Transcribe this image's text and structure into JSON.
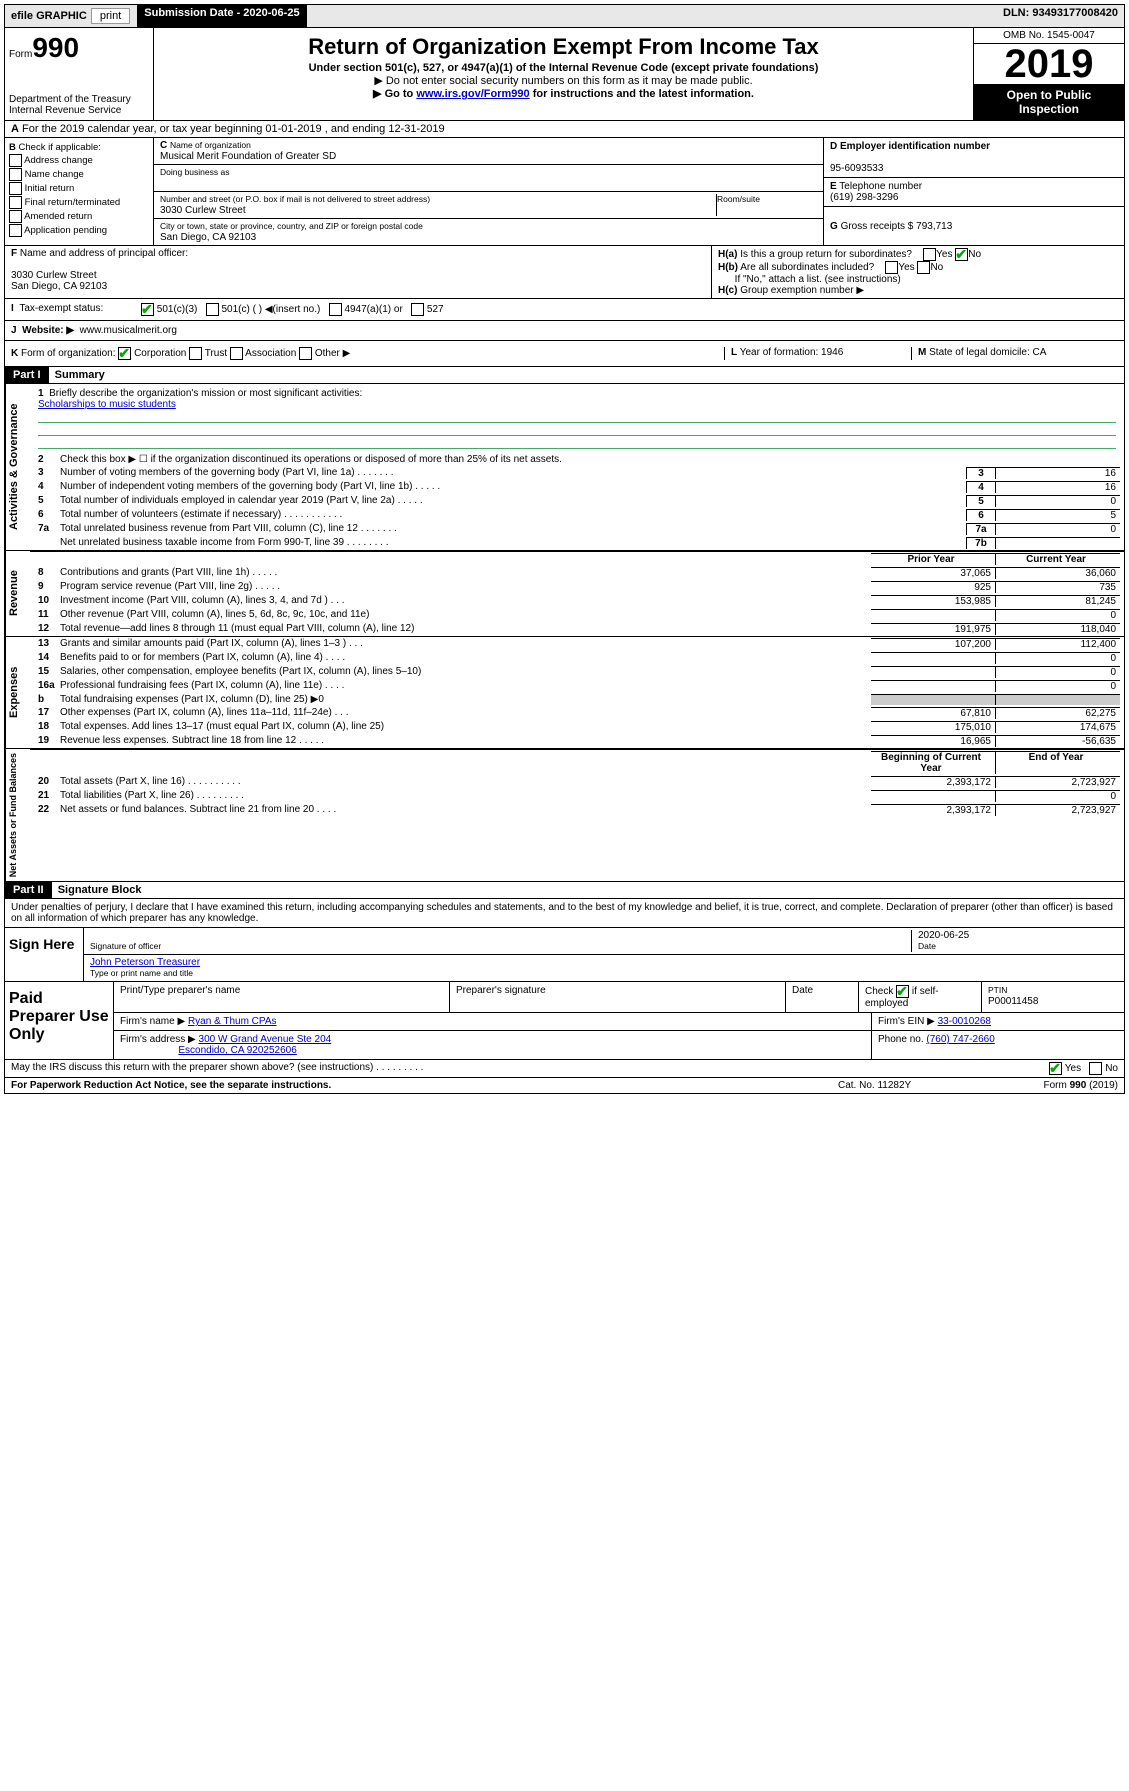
{
  "topbar": {
    "efile": "efile GRAPHIC",
    "print": "print",
    "sub_label": "Submission Date - ",
    "sub_date": "2020-06-25",
    "dln": "DLN: 93493177008420"
  },
  "header": {
    "form_label": "Form",
    "form_num": "990",
    "dept": "Department of the Treasury\nInternal Revenue Service",
    "title": "Return of Organization Exempt From Income Tax",
    "sub1": "Under section 501(c), 527, or 4947(a)(1) of the Internal Revenue Code (except private foundations)",
    "sub2": "▶ Do not enter social security numbers on this form as it may be made public.",
    "sub3_pre": "▶ Go to ",
    "sub3_link": "www.irs.gov/Form990",
    "sub3_post": " for instructions and the latest information.",
    "omb": "OMB No. 1545-0047",
    "year": "2019",
    "open": "Open to Public Inspection"
  },
  "rowA": "For the 2019 calendar year, or tax year beginning 01-01-2019    , and ending 12-31-2019",
  "B": {
    "label": "Check if applicable:",
    "opts": [
      "Address change",
      "Name change",
      "Initial return",
      "Final return/terminated",
      "Amended return",
      "Application pending"
    ]
  },
  "C": {
    "name_label": "Name of organization",
    "name": "Musical Merit Foundation of Greater SD",
    "dba_label": "Doing business as",
    "dba": "",
    "street_label": "Number and street (or P.O. box if mail is not delivered to street address)",
    "street": "3030 Curlew Street",
    "room_label": "Room/suite",
    "city_label": "City or town, state or province, country, and ZIP or foreign postal code",
    "city": "San Diego, CA  92103"
  },
  "D": {
    "ein_label": "Employer identification number",
    "ein": "95-6093533",
    "tel_label": "Telephone number",
    "tel": "(619) 298-3296",
    "gross_label": "Gross receipts $",
    "gross": "793,713"
  },
  "F": {
    "label": "Name and address of principal officer:",
    "addr1": "3030 Curlew Street",
    "addr2": "San Diego, CA  92103"
  },
  "H": {
    "a": "Is this a group return for subordinates?",
    "b": "Are all subordinates included?",
    "b2": "If \"No,\" attach a list. (see instructions)",
    "c": "Group exemption number ▶"
  },
  "I": {
    "label": "Tax-exempt status:",
    "o1": "501(c)(3)",
    "o2": "501(c) (  ) ◀(insert no.)",
    "o3": "4947(a)(1) or",
    "o4": "527"
  },
  "J": {
    "label": "Website: ▶",
    "val": "www.musicalmerit.org"
  },
  "K": {
    "label": "Form of organization:",
    "o1": "Corporation",
    "o2": "Trust",
    "o3": "Association",
    "o4": "Other ▶",
    "L": "Year of formation: 1946",
    "M": "State of legal domicile: CA"
  },
  "partI": {
    "hdr": "Part I",
    "title": "Summary",
    "l1": "Briefly describe the organization's mission or most significant activities:",
    "mission": "Scholarships to music students",
    "l2": "Check this box ▶ ☐  if the organization discontinued its operations or disposed of more than 25% of its net assets.",
    "cols_py": "Prior Year",
    "cols_cy": "Current Year",
    "cols_boy": "Beginning of Current Year",
    "cols_eoy": "End of Year"
  },
  "lines_top": [
    {
      "n": "3",
      "d": "Number of voting members of the governing body (Part VI, line 1a)  .   .   .   .   .   .   .",
      "box": "3",
      "v": "16"
    },
    {
      "n": "4",
      "d": "Number of independent voting members of the governing body (Part VI, line 1b)  .   .   .   .   .",
      "box": "4",
      "v": "16"
    },
    {
      "n": "5",
      "d": "Total number of individuals employed in calendar year 2019 (Part V, line 2a)  .   .   .   .   .",
      "box": "5",
      "v": "0"
    },
    {
      "n": "6",
      "d": "Total number of volunteers (estimate if necessary)  .   .   .   .   .   .   .   .   .   .   .",
      "box": "6",
      "v": "5"
    },
    {
      "n": "7a",
      "d": "Total unrelated business revenue from Part VIII, column (C), line 12  .   .   .   .   .   .   .",
      "box": "7a",
      "v": "0"
    },
    {
      "n": "",
      "d": "Net unrelated business taxable income from Form 990-T, line 39  .   .   .   .   .   .   .   .",
      "box": "7b",
      "v": ""
    }
  ],
  "lines_rev": [
    {
      "n": "8",
      "d": "Contributions and grants (Part VIII, line 1h)  .   .   .   .   .",
      "py": "37,065",
      "cy": "36,060"
    },
    {
      "n": "9",
      "d": "Program service revenue (Part VIII, line 2g)  .   .   .   .   .",
      "py": "925",
      "cy": "735"
    },
    {
      "n": "10",
      "d": "Investment income (Part VIII, column (A), lines 3, 4, and 7d )  .   .   .",
      "py": "153,985",
      "cy": "81,245"
    },
    {
      "n": "11",
      "d": "Other revenue (Part VIII, column (A), lines 5, 6d, 8c, 9c, 10c, and 11e)",
      "py": "",
      "cy": "0"
    },
    {
      "n": "12",
      "d": "Total revenue—add lines 8 through 11 (must equal Part VIII, column (A), line 12)",
      "py": "191,975",
      "cy": "118,040"
    }
  ],
  "lines_exp": [
    {
      "n": "13",
      "d": "Grants and similar amounts paid (Part IX, column (A), lines 1–3 )  .   .   .",
      "py": "107,200",
      "cy": "112,400"
    },
    {
      "n": "14",
      "d": "Benefits paid to or for members (Part IX, column (A), line 4)  .   .   .   .",
      "py": "",
      "cy": "0"
    },
    {
      "n": "15",
      "d": "Salaries, other compensation, employee benefits (Part IX, column (A), lines 5–10)",
      "py": "",
      "cy": "0"
    },
    {
      "n": "16a",
      "d": "Professional fundraising fees (Part IX, column (A), line 11e)  .   .   .   .",
      "py": "",
      "cy": "0"
    },
    {
      "n": "b",
      "d": "Total fundraising expenses (Part IX, column (D), line 25) ▶0",
      "py": "gray",
      "cy": "gray"
    },
    {
      "n": "17",
      "d": "Other expenses (Part IX, column (A), lines 11a–11d, 11f–24e)  .   .   .",
      "py": "67,810",
      "cy": "62,275"
    },
    {
      "n": "18",
      "d": "Total expenses. Add lines 13–17 (must equal Part IX, column (A), line 25)",
      "py": "175,010",
      "cy": "174,675"
    },
    {
      "n": "19",
      "d": "Revenue less expenses. Subtract line 18 from line 12  .   .   .   .   .",
      "py": "16,965",
      "cy": "-56,635"
    }
  ],
  "lines_na": [
    {
      "n": "20",
      "d": "Total assets (Part X, line 16)  .   .   .   .   .   .   .   .   .   .",
      "py": "2,393,172",
      "cy": "2,723,927"
    },
    {
      "n": "21",
      "d": "Total liabilities (Part X, line 26)  .   .   .   .   .   .   .   .   .",
      "py": "",
      "cy": "0"
    },
    {
      "n": "22",
      "d": "Net assets or fund balances. Subtract line 21 from line 20  .   .   .   .",
      "py": "2,393,172",
      "cy": "2,723,927"
    }
  ],
  "partII": {
    "hdr": "Part II",
    "title": "Signature Block",
    "perjury": "Under penalties of perjury, I declare that I have examined this return, including accompanying schedules and statements, and to the best of my knowledge and belief, it is true, correct, and complete. Declaration of preparer (other than officer) is based on all information of which preparer has any knowledge.",
    "sign_here": "Sign Here",
    "sig_off": "Signature of officer",
    "date": "2020-06-25",
    "date_lbl": "Date",
    "name": "John Peterson  Treasurer",
    "name_lbl": "Type or print name and title"
  },
  "paid": {
    "label": "Paid Preparer Use Only",
    "p1": "Print/Type preparer's name",
    "p2": "Preparer's signature",
    "p3": "Date",
    "p4_label": "Check",
    "p4_label2": "if self-employed",
    "ptin_lbl": "PTIN",
    "ptin": "P00011458",
    "firm_name_lbl": "Firm's name    ▶",
    "firm_name": "Ryan & Thum CPAs",
    "firm_ein_lbl": "Firm's EIN ▶",
    "firm_ein": "33-0010268",
    "firm_addr_lbl": "Firm's address ▶",
    "firm_addr1": "300 W Grand Avenue Ste 204",
    "firm_addr2": "Escondido, CA  920252606",
    "phone_lbl": "Phone no.",
    "phone": "(760) 747-2660"
  },
  "footer": {
    "discuss": "May the IRS discuss this return with the preparer shown above? (see instructions)  .   .   .   .   .   .   .   .   .",
    "pra": "For Paperwork Reduction Act Notice, see the separate instructions.",
    "cat": "Cat. No. 11282Y",
    "form": "Form 990 (2019)"
  },
  "labels": {
    "vert_gov": "Activities & Governance",
    "vert_rev": "Revenue",
    "vert_exp": "Expenses",
    "vert_na": "Net Assets or Fund Balances",
    "yes": "Yes",
    "no": "No"
  }
}
